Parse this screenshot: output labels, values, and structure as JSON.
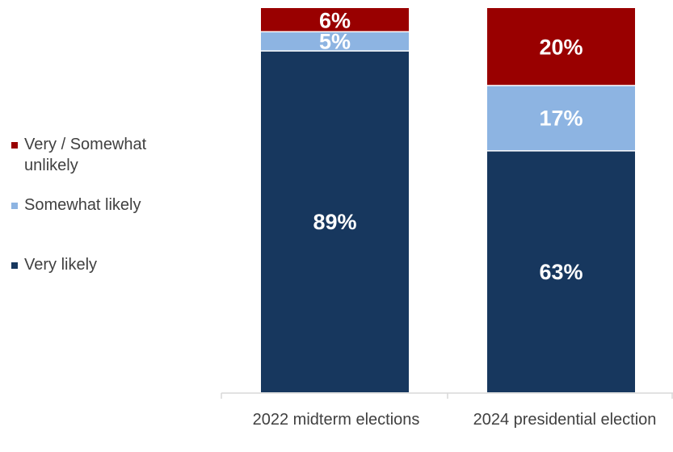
{
  "chart_data": {
    "type": "bar",
    "stacked": true,
    "categories": [
      "2022 midterm elections",
      "2024 presidential election"
    ],
    "series": [
      {
        "name": "Very likely",
        "values": [
          89,
          63
        ],
        "labels": [
          "89%",
          "63%"
        ],
        "color": "#17375e"
      },
      {
        "name": "Somewhat likely",
        "values": [
          5,
          17
        ],
        "labels": [
          "5%",
          "17%"
        ],
        "color": "#8db4e2"
      },
      {
        "name": "Very / Somewhat unlikely",
        "values": [
          6,
          20
        ],
        "labels": [
          "6%",
          "20%"
        ],
        "color": "#990000"
      }
    ],
    "ylim": [
      0,
      100
    ],
    "legend_position": "left",
    "grid": false
  }
}
